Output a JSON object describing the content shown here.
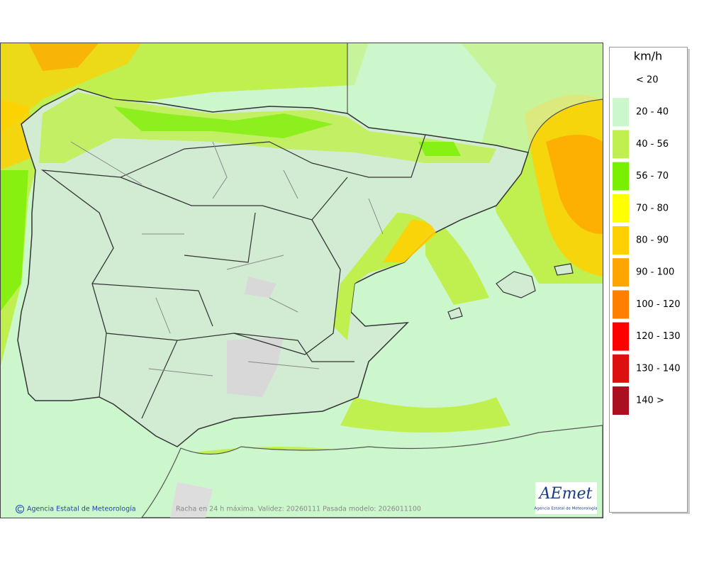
{
  "header": {
    "unit": "km/h"
  },
  "legend": [
    {
      "label": "< 20"
    },
    {
      "label": "20 - 40",
      "color": "#ccf7cc"
    },
    {
      "label": "40 - 56",
      "color": "#c0f050"
    },
    {
      "label": "56 - 70",
      "color": "#78f000"
    },
    {
      "label": "70 - 80",
      "color": "#ffff00"
    },
    {
      "label": "80 - 90",
      "color": "#ffd000"
    },
    {
      "label": "90 - 100",
      "color": "#ffa500"
    },
    {
      "label": "100 - 120",
      "color": "#ff8000"
    },
    {
      "label": "120 - 130",
      "color": "#ff0000"
    },
    {
      "label": "130 - 140",
      "color": "#dd1010"
    },
    {
      "label": "140 >",
      "color": "#aa1020"
    }
  ],
  "footer": {
    "credit": "Agencia Estatal de Meteorología",
    "caption": "Racha en 24 h máxima. Validez: 20260111 Pasada modelo: 2026011100"
  },
  "logo": {
    "name": "AEmet",
    "subtitle": "Agencia Estatal de Meteorología"
  }
}
